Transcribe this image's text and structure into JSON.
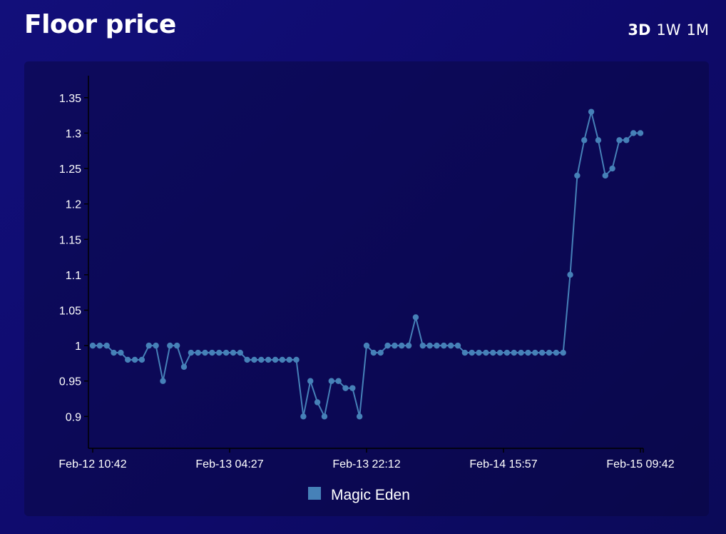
{
  "header": {
    "title": "Floor price",
    "ranges": [
      {
        "label": "3D",
        "active": true
      },
      {
        "label": "1W",
        "active": false
      },
      {
        "label": "1M",
        "active": false
      }
    ]
  },
  "colors": {
    "series": "#4681b8",
    "axis": "#000000",
    "text": "#ffffff"
  },
  "chart_data": {
    "type": "line",
    "title": "",
    "xlabel": "",
    "ylabel": "",
    "ylim": [
      0.855,
      1.375
    ],
    "yticks": [
      0.9,
      0.95,
      1,
      1.05,
      1.1,
      1.15,
      1.2,
      1.25,
      1.3,
      1.35
    ],
    "ytick_labels": [
      "0.9",
      "0.95",
      "1",
      "1.05",
      "1.1",
      "1.15",
      "1.2",
      "1.25",
      "1.3",
      "1.35"
    ],
    "xticks": [
      "Feb-12 10:42",
      "Feb-13 04:27",
      "Feb-13 22:12",
      "Feb-14 15:57",
      "Feb-15 09:42"
    ],
    "grid": false,
    "legend": "bottom-center",
    "series": [
      {
        "name": "Magic Eden",
        "values": [
          1.0,
          1.0,
          1.0,
          0.99,
          0.99,
          0.98,
          0.98,
          0.98,
          1.0,
          1.0,
          0.95,
          1.0,
          1.0,
          0.97,
          0.99,
          0.99,
          0.99,
          0.99,
          0.99,
          0.99,
          0.99,
          0.99,
          0.98,
          0.98,
          0.98,
          0.98,
          0.98,
          0.98,
          0.98,
          0.98,
          0.9,
          0.95,
          0.92,
          0.9,
          0.95,
          0.95,
          0.94,
          0.94,
          0.9,
          1.0,
          0.99,
          0.99,
          1.0,
          1.0,
          1.0,
          1.0,
          1.04,
          1.0,
          1.0,
          1.0,
          1.0,
          1.0,
          1.0,
          0.99,
          0.99,
          0.99,
          0.99,
          0.99,
          0.99,
          0.99,
          0.99,
          0.99,
          0.99,
          0.99,
          0.99,
          0.99,
          0.99,
          0.99,
          1.1,
          1.24,
          1.29,
          1.33,
          1.29,
          1.24,
          1.25,
          1.29,
          1.29,
          1.3,
          1.3
        ]
      }
    ]
  }
}
